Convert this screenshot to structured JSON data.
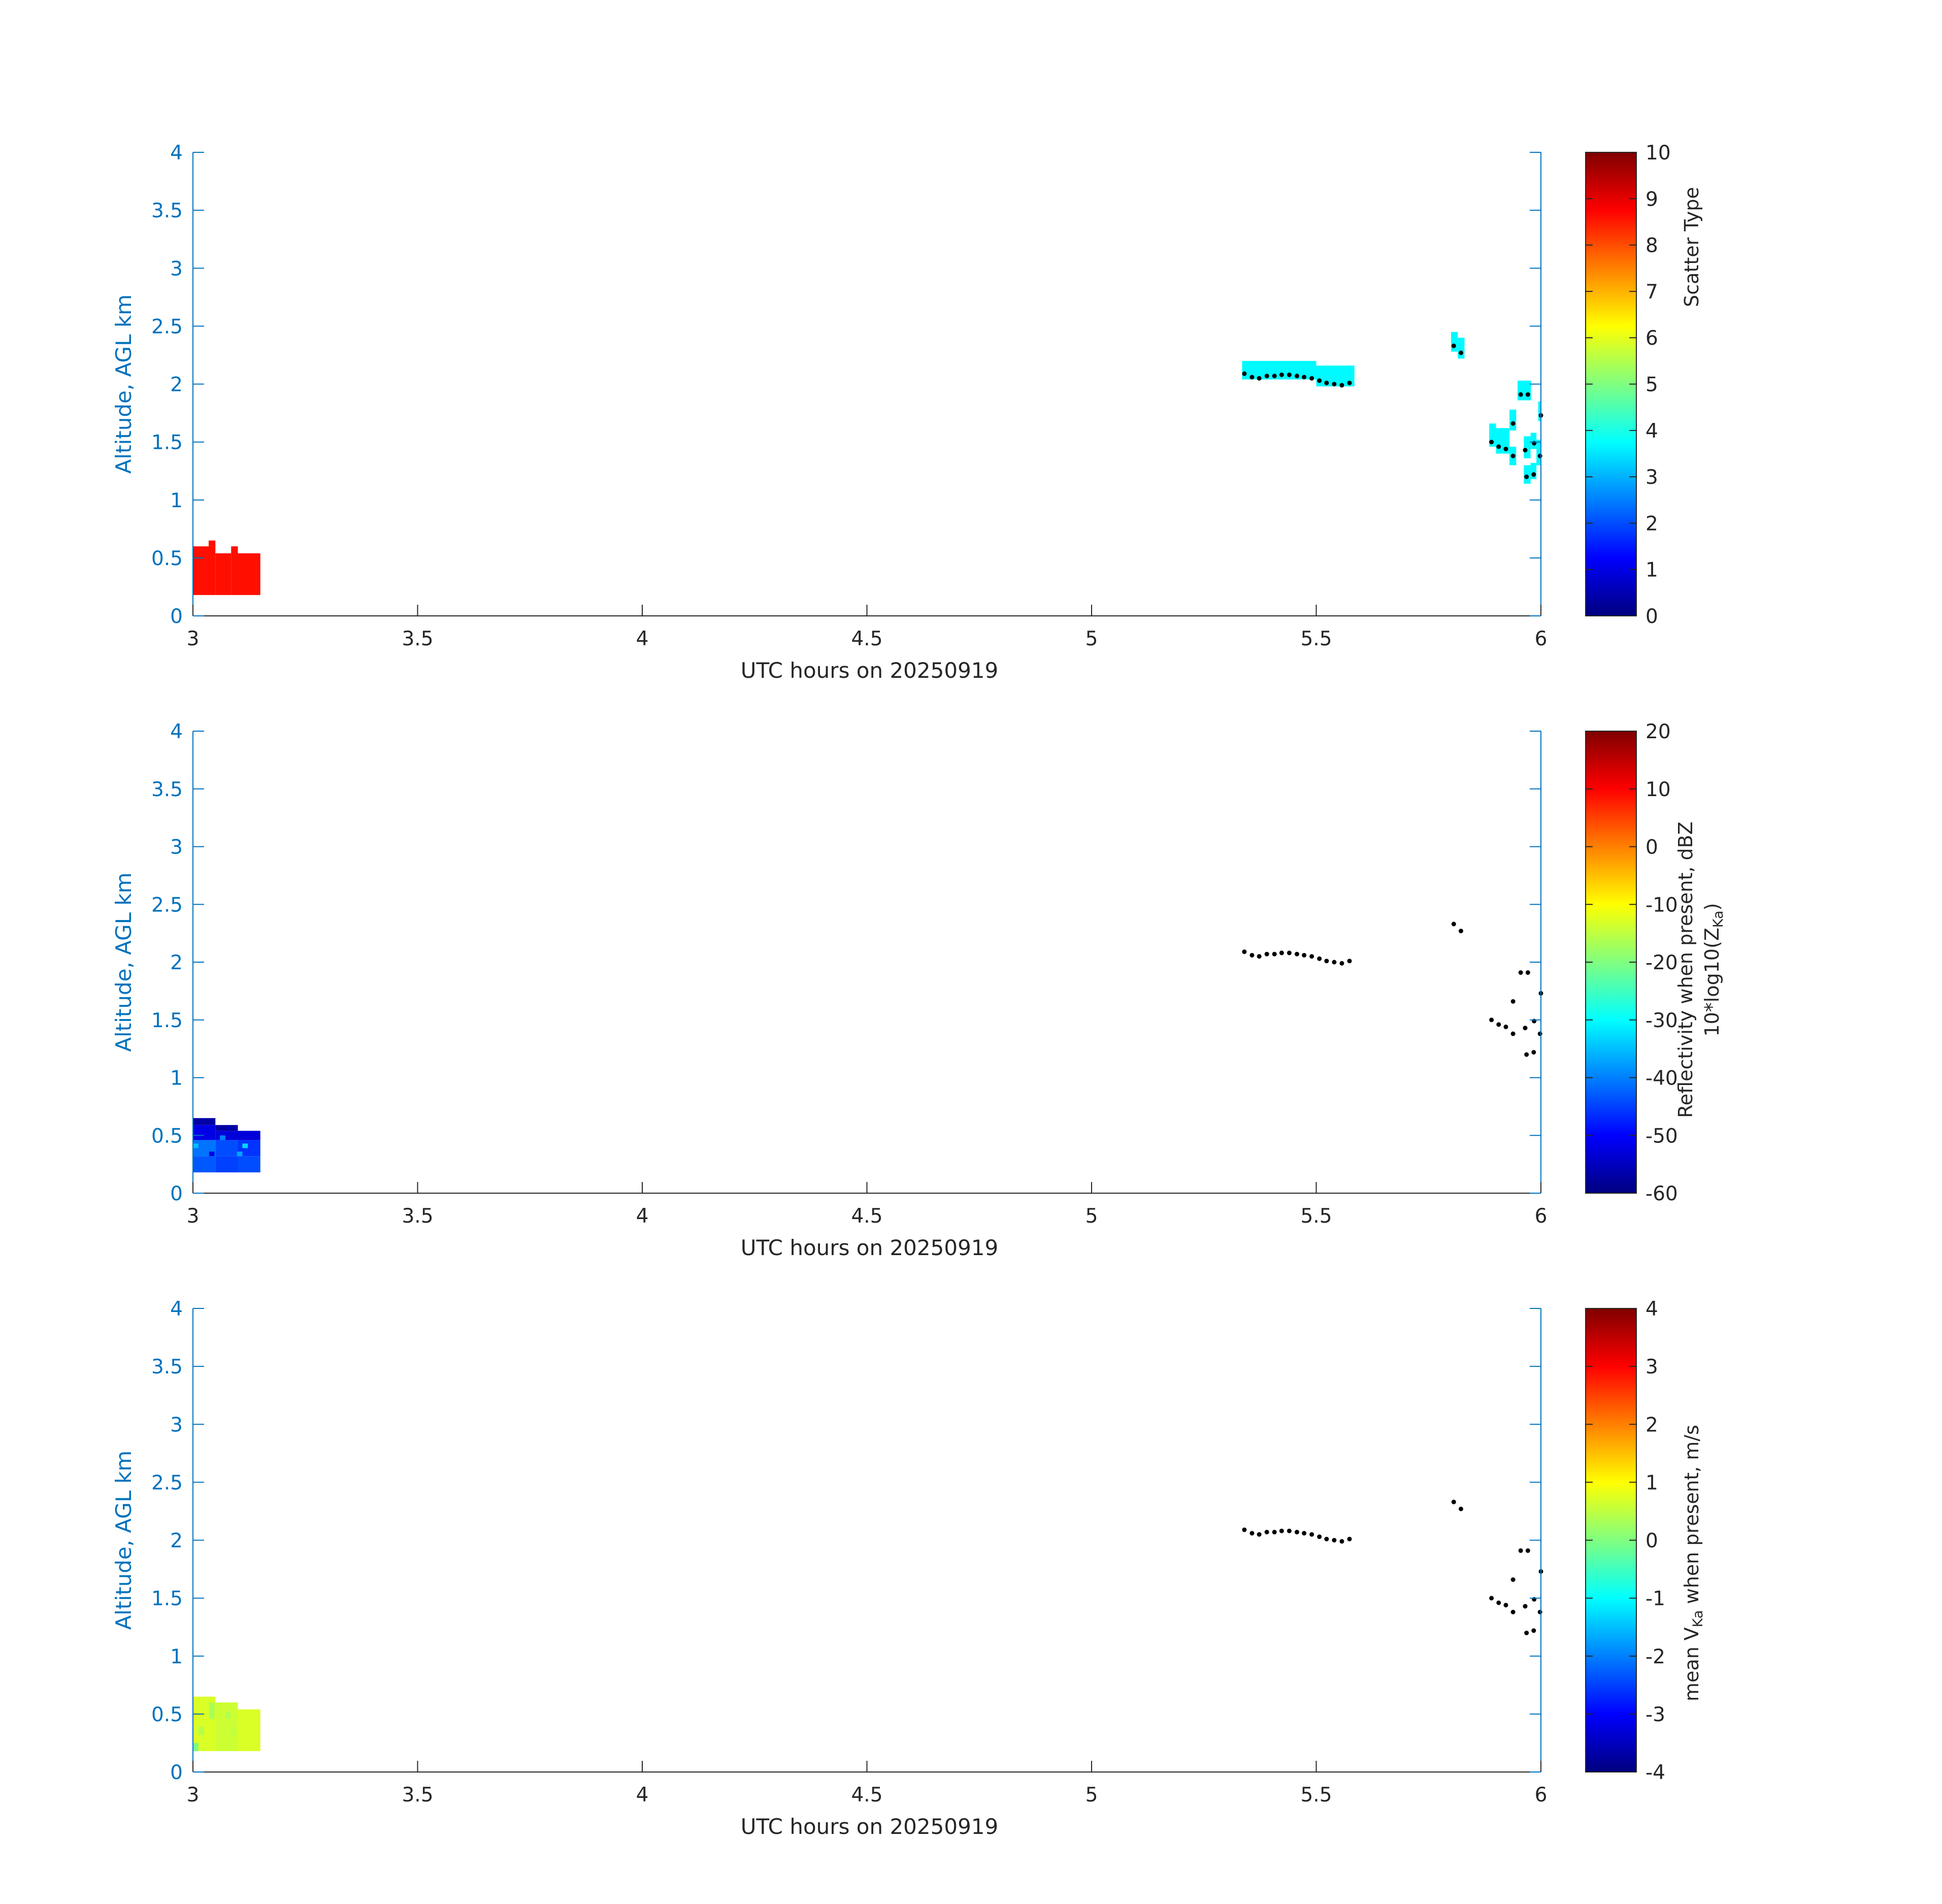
{
  "chart_data": [
    {
      "type": "heatmap",
      "xlabel": "UTC hours on 20250919",
      "ylabel": "Altitude, AGL km",
      "xlim": [
        3,
        6
      ],
      "ylim": [
        0,
        4
      ],
      "xticks": [
        "3",
        "3.5",
        "4",
        "4.5",
        "5",
        "5.5",
        "6"
      ],
      "yticks": [
        "0",
        "0.5",
        "1",
        "1.5",
        "2",
        "2.5",
        "3",
        "3.5",
        "4"
      ],
      "colorbar": {
        "label_lines": [
          "Scatter Type"
        ],
        "range": [
          0,
          10
        ],
        "ticks": [
          "0",
          "1",
          "2",
          "3",
          "4",
          "5",
          "6",
          "7",
          "8",
          "9",
          "10"
        ],
        "colormap": "jet"
      },
      "cells": [
        {
          "x0": 3.0,
          "x1": 3.05,
          "y0": 0.18,
          "y1": 0.6,
          "v": 8.6
        },
        {
          "x0": 3.035,
          "x1": 3.05,
          "y0": 0.6,
          "y1": 0.65,
          "v": 8.6
        },
        {
          "x0": 3.05,
          "x1": 3.085,
          "y0": 0.18,
          "y1": 0.54,
          "v": 8.6
        },
        {
          "x0": 3.085,
          "x1": 3.1,
          "y0": 0.18,
          "y1": 0.6,
          "v": 8.6
        },
        {
          "x0": 3.1,
          "x1": 3.15,
          "y0": 0.18,
          "y1": 0.54,
          "v": 8.6
        },
        {
          "x0": 5.335,
          "x1": 5.5,
          "y0": 2.04,
          "y1": 2.2,
          "v": 3.7
        },
        {
          "x0": 5.5,
          "x1": 5.585,
          "y0": 1.98,
          "y1": 2.16,
          "v": 3.7
        },
        {
          "x0": 5.8,
          "x1": 5.815,
          "y0": 2.28,
          "y1": 2.45,
          "v": 3.7
        },
        {
          "x0": 5.815,
          "x1": 5.83,
          "y0": 2.22,
          "y1": 2.4,
          "v": 3.7
        },
        {
          "x0": 5.885,
          "x1": 5.9,
          "y0": 1.46,
          "y1": 1.66,
          "v": 3.7
        },
        {
          "x0": 5.9,
          "x1": 5.93,
          "y0": 1.4,
          "y1": 1.62,
          "v": 3.7
        },
        {
          "x0": 5.93,
          "x1": 5.945,
          "y0": 1.3,
          "y1": 1.46,
          "v": 3.7
        },
        {
          "x0": 5.93,
          "x1": 5.945,
          "y0": 1.6,
          "y1": 1.78,
          "v": 3.7
        },
        {
          "x0": 5.948,
          "x1": 5.978,
          "y0": 1.86,
          "y1": 2.03,
          "v": 3.7
        },
        {
          "x0": 5.962,
          "x1": 5.977,
          "y0": 1.36,
          "y1": 1.55,
          "v": 3.7
        },
        {
          "x0": 5.962,
          "x1": 5.977,
          "y0": 1.14,
          "y1": 1.3,
          "v": 3.7
        },
        {
          "x0": 5.977,
          "x1": 5.99,
          "y0": 1.18,
          "y1": 1.32,
          "v": 3.7
        },
        {
          "x0": 5.977,
          "x1": 5.99,
          "y0": 1.44,
          "y1": 1.58,
          "v": 3.7
        },
        {
          "x0": 5.99,
          "x1": 6.0,
          "y0": 1.3,
          "y1": 1.52,
          "v": 3.7
        },
        {
          "x0": 5.994,
          "x1": 6.0,
          "y0": 1.68,
          "y1": 1.85,
          "v": 3.7
        }
      ]
    },
    {
      "type": "heatmap",
      "xlabel": "UTC hours on 20250919",
      "ylabel": "Altitude, AGL km",
      "xlim": [
        3,
        6
      ],
      "ylim": [
        0,
        4
      ],
      "xticks": [
        "3",
        "3.5",
        "4",
        "4.5",
        "5",
        "5.5",
        "6"
      ],
      "yticks": [
        "0",
        "0.5",
        "1",
        "1.5",
        "2",
        "2.5",
        "3",
        "3.5",
        "4"
      ],
      "colorbar": {
        "label_lines": [
          "Reflectivity when present, dBZ",
          "10*log10(Z",
          "Ka",
          ")"
        ],
        "range": [
          -60,
          20
        ],
        "ticks": [
          "-60",
          "-50",
          "-40",
          "-30",
          "-20",
          "-10",
          "0",
          "10",
          "20"
        ],
        "colormap": "jet"
      },
      "cells": [
        {
          "x0": 3.0,
          "x1": 3.05,
          "y0": 0.18,
          "y1": 0.32,
          "v": -43
        },
        {
          "x0": 3.05,
          "x1": 3.1,
          "y0": 0.18,
          "y1": 0.32,
          "v": -45
        },
        {
          "x0": 3.1,
          "x1": 3.15,
          "y0": 0.18,
          "y1": 0.32,
          "v": -44
        },
        {
          "x0": 3.0,
          "x1": 3.05,
          "y0": 0.32,
          "y1": 0.46,
          "v": -41
        },
        {
          "x0": 3.05,
          "x1": 3.1,
          "y0": 0.32,
          "y1": 0.46,
          "v": -44
        },
        {
          "x0": 3.1,
          "x1": 3.15,
          "y0": 0.32,
          "y1": 0.46,
          "v": -46
        },
        {
          "x0": 3.0,
          "x1": 3.05,
          "y0": 0.46,
          "y1": 0.59,
          "v": -52
        },
        {
          "x0": 3.05,
          "x1": 3.1,
          "y0": 0.46,
          "y1": 0.54,
          "v": -53
        },
        {
          "x0": 3.1,
          "x1": 3.15,
          "y0": 0.46,
          "y1": 0.54,
          "v": -53
        },
        {
          "x0": 3.0,
          "x1": 3.05,
          "y0": 0.59,
          "y1": 0.65,
          "v": -57
        },
        {
          "x0": 3.05,
          "x1": 3.1,
          "y0": 0.54,
          "y1": 0.59,
          "v": -57
        },
        {
          "x0": 3.0,
          "x1": 3.012,
          "y0": 0.39,
          "y1": 0.43,
          "v": -35
        },
        {
          "x0": 3.036,
          "x1": 3.048,
          "y0": 0.32,
          "y1": 0.36,
          "v": -52
        },
        {
          "x0": 3.098,
          "x1": 3.11,
          "y0": 0.32,
          "y1": 0.36,
          "v": -37
        },
        {
          "x0": 3.11,
          "x1": 3.122,
          "y0": 0.39,
          "y1": 0.43,
          "v": -33
        },
        {
          "x0": 3.06,
          "x1": 3.072,
          "y0": 0.46,
          "y1": 0.5,
          "v": -40
        }
      ]
    },
    {
      "type": "heatmap",
      "xlabel": "UTC hours on 20250919",
      "ylabel": "Altitude, AGL km",
      "xlim": [
        3,
        6
      ],
      "ylim": [
        0,
        4
      ],
      "xticks": [
        "3",
        "3.5",
        "4",
        "4.5",
        "5",
        "5.5",
        "6"
      ],
      "yticks": [
        "0",
        "0.5",
        "1",
        "1.5",
        "2",
        "2.5",
        "3",
        "3.5",
        "4"
      ],
      "colorbar": {
        "label_lines": [
          "mean V",
          "Ka",
          " when present, m/s"
        ],
        "range": [
          -4,
          4
        ],
        "ticks": [
          "-4",
          "-3",
          "-2",
          "-1",
          "0",
          "1",
          "2",
          "3",
          "4"
        ],
        "colormap": "jet"
      },
      "cells": [
        {
          "x0": 3.0,
          "x1": 3.05,
          "y0": 0.18,
          "y1": 0.65,
          "v": 0.7
        },
        {
          "x0": 3.05,
          "x1": 3.1,
          "y0": 0.18,
          "y1": 0.6,
          "v": 0.6
        },
        {
          "x0": 3.1,
          "x1": 3.15,
          "y0": 0.18,
          "y1": 0.54,
          "v": 0.7
        },
        {
          "x0": 3.0,
          "x1": 3.012,
          "y0": 0.18,
          "y1": 0.25,
          "v": -0.1
        },
        {
          "x0": 3.036,
          "x1": 3.048,
          "y0": 0.46,
          "y1": 0.6,
          "v": 0.3
        },
        {
          "x0": 3.072,
          "x1": 3.084,
          "y0": 0.46,
          "y1": 0.52,
          "v": 0.4
        },
        {
          "x0": 3.084,
          "x1": 3.096,
          "y0": 0.32,
          "y1": 0.39,
          "v": 0.5
        },
        {
          "x0": 3.012,
          "x1": 3.024,
          "y0": 0.32,
          "y1": 0.39,
          "v": 0.4
        }
      ]
    }
  ],
  "markers": [
    [
      5.34,
      2.09
    ],
    [
      5.357,
      2.06
    ],
    [
      5.373,
      2.05
    ],
    [
      5.39,
      2.07
    ],
    [
      5.407,
      2.07
    ],
    [
      5.423,
      2.08
    ],
    [
      5.44,
      2.08
    ],
    [
      5.457,
      2.07
    ],
    [
      5.473,
      2.06
    ],
    [
      5.49,
      2.05
    ],
    [
      5.507,
      2.03
    ],
    [
      5.523,
      2.01
    ],
    [
      5.54,
      2.0
    ],
    [
      5.557,
      1.99
    ],
    [
      5.574,
      2.01
    ],
    [
      5.806,
      2.33
    ],
    [
      5.822,
      2.27
    ],
    [
      5.89,
      1.5
    ],
    [
      5.906,
      1.46
    ],
    [
      5.922,
      1.44
    ],
    [
      5.938,
      1.38
    ],
    [
      5.938,
      1.66
    ],
    [
      5.955,
      1.91
    ],
    [
      5.971,
      1.91
    ],
    [
      5.965,
      1.43
    ],
    [
      5.968,
      1.2
    ],
    [
      5.984,
      1.22
    ],
    [
      5.985,
      1.49
    ],
    [
      5.998,
      1.38
    ],
    [
      6.0,
      1.73
    ]
  ]
}
